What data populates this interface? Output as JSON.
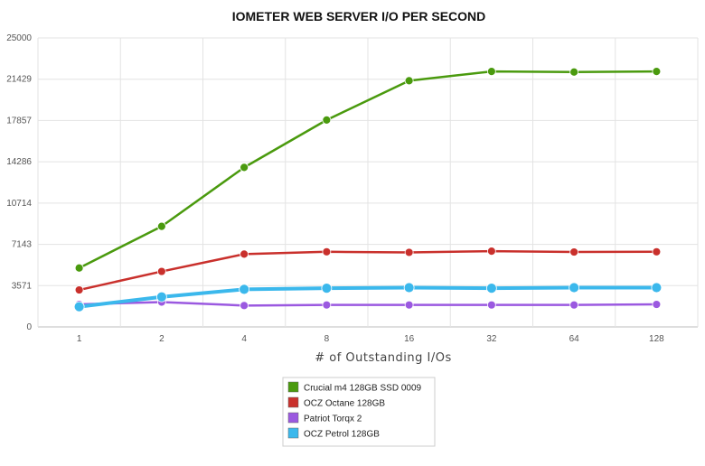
{
  "chart_data": {
    "type": "line",
    "title": "IOMETER WEB SERVER I/O PER SECOND",
    "xlabel": "# of Outstanding I/Os",
    "ylabel": "",
    "categories": [
      "1",
      "2",
      "4",
      "8",
      "16",
      "32",
      "64",
      "128"
    ],
    "yticks": [
      "0",
      "3571",
      "7143",
      "10714",
      "14286",
      "17857",
      "21429",
      "25000"
    ],
    "ylim": [
      0,
      25000
    ],
    "grid": true,
    "legend_position": "bottom-center",
    "series": [
      {
        "name": "Crucial m4 128GB SSD 0009",
        "color": "#4a9a0e",
        "values": [
          5100,
          8700,
          13800,
          17900,
          21300,
          22100,
          22050,
          22100
        ]
      },
      {
        "name": "OCZ Octane 128GB",
        "color": "#c9302c",
        "values": [
          3200,
          4800,
          6300,
          6500,
          6450,
          6550,
          6480,
          6500
        ]
      },
      {
        "name": "Patriot Torqx 2",
        "color": "#9b59e0",
        "values": [
          1950,
          2150,
          1850,
          1900,
          1900,
          1900,
          1900,
          1950
        ]
      },
      {
        "name": "OCZ Petrol 128GB",
        "color": "#3bb8ec",
        "values": [
          1750,
          2600,
          3250,
          3350,
          3400,
          3350,
          3400,
          3400
        ]
      }
    ]
  }
}
